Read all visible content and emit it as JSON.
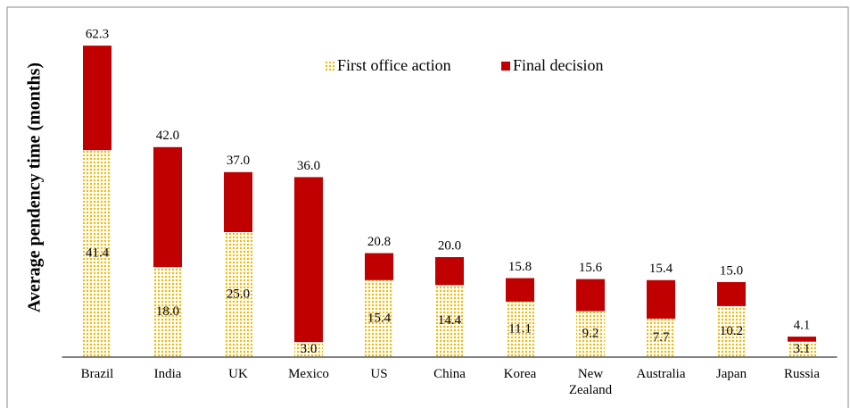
{
  "chart_data": {
    "type": "bar",
    "overlap": true,
    "y_label": "Average pendency time (months)",
    "categories": [
      "Brazil",
      "India",
      "UK",
      "Mexico",
      "US",
      "China",
      "Korea",
      "New Zealand",
      "Australia",
      "Japan",
      "Russia"
    ],
    "series": [
      {
        "name": "First office action",
        "color": "#f2b800",
        "pattern": "dots",
        "values": [
          41.4,
          18.0,
          25.0,
          3.0,
          15.4,
          14.4,
          11.1,
          9.2,
          7.7,
          10.2,
          3.1
        ],
        "value_labels": [
          "41.4",
          "18.0",
          "25.0",
          "3.0",
          "15.4",
          "14.4",
          "11.1",
          "9.2",
          "7.7",
          "10.2",
          "3.1"
        ]
      },
      {
        "name": "Final decision",
        "color": "#c00000",
        "values": [
          62.3,
          42.0,
          37.0,
          36.0,
          20.8,
          20.0,
          15.8,
          15.6,
          15.4,
          15.0,
          4.1
        ],
        "value_labels": [
          "62.3",
          "42.0",
          "37.0",
          "36.0",
          "20.8",
          "20.0",
          "15.8",
          "15.6",
          "15.4",
          "15.0",
          "4.1"
        ]
      }
    ],
    "ylim": [
      0,
      70
    ]
  }
}
